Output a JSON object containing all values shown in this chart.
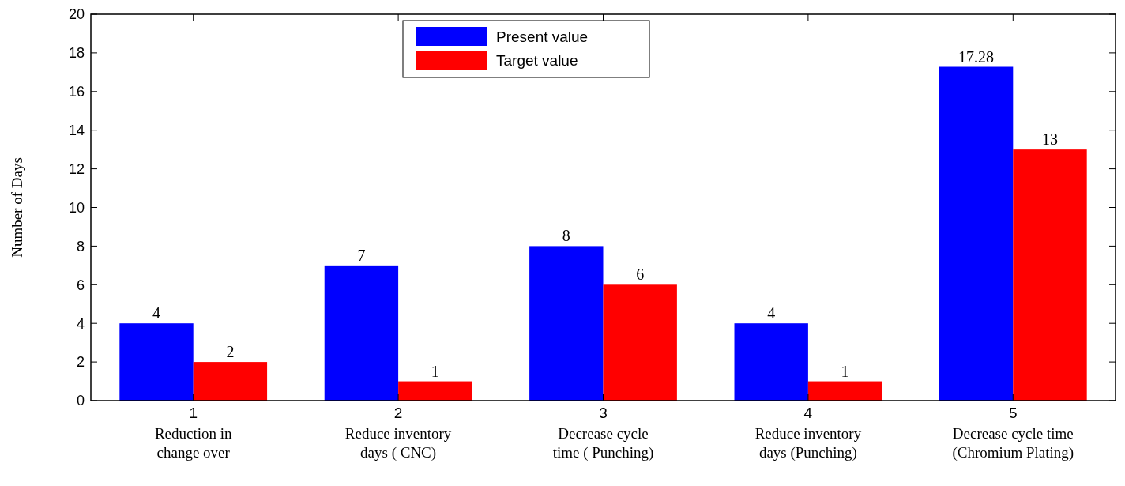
{
  "chart_data": {
    "type": "bar",
    "ylabel": "Number of Days",
    "categories": [
      "1\nReduction in\nchange over",
      "2\nReduce inventory\ndays ( CNC)",
      "3\nDecrease cycle\ntime ( Punching)",
      "4\nReduce inventory\ndays (Punching)",
      "5\nDecrease cycle time\n(Chromium Plating)"
    ],
    "series": [
      {
        "name": "Present value",
        "color": "#0000ff",
        "values": [
          4,
          7,
          8,
          4,
          17.28
        ]
      },
      {
        "name": "Target value",
        "color": "#ff0000",
        "values": [
          2,
          1,
          6,
          1,
          13
        ]
      }
    ],
    "ylim": [
      0,
      20
    ],
    "yticks": [
      0,
      2,
      4,
      6,
      8,
      10,
      12,
      14,
      16,
      18,
      20
    ],
    "data_labels": true,
    "legend": "top",
    "grid": false
  }
}
